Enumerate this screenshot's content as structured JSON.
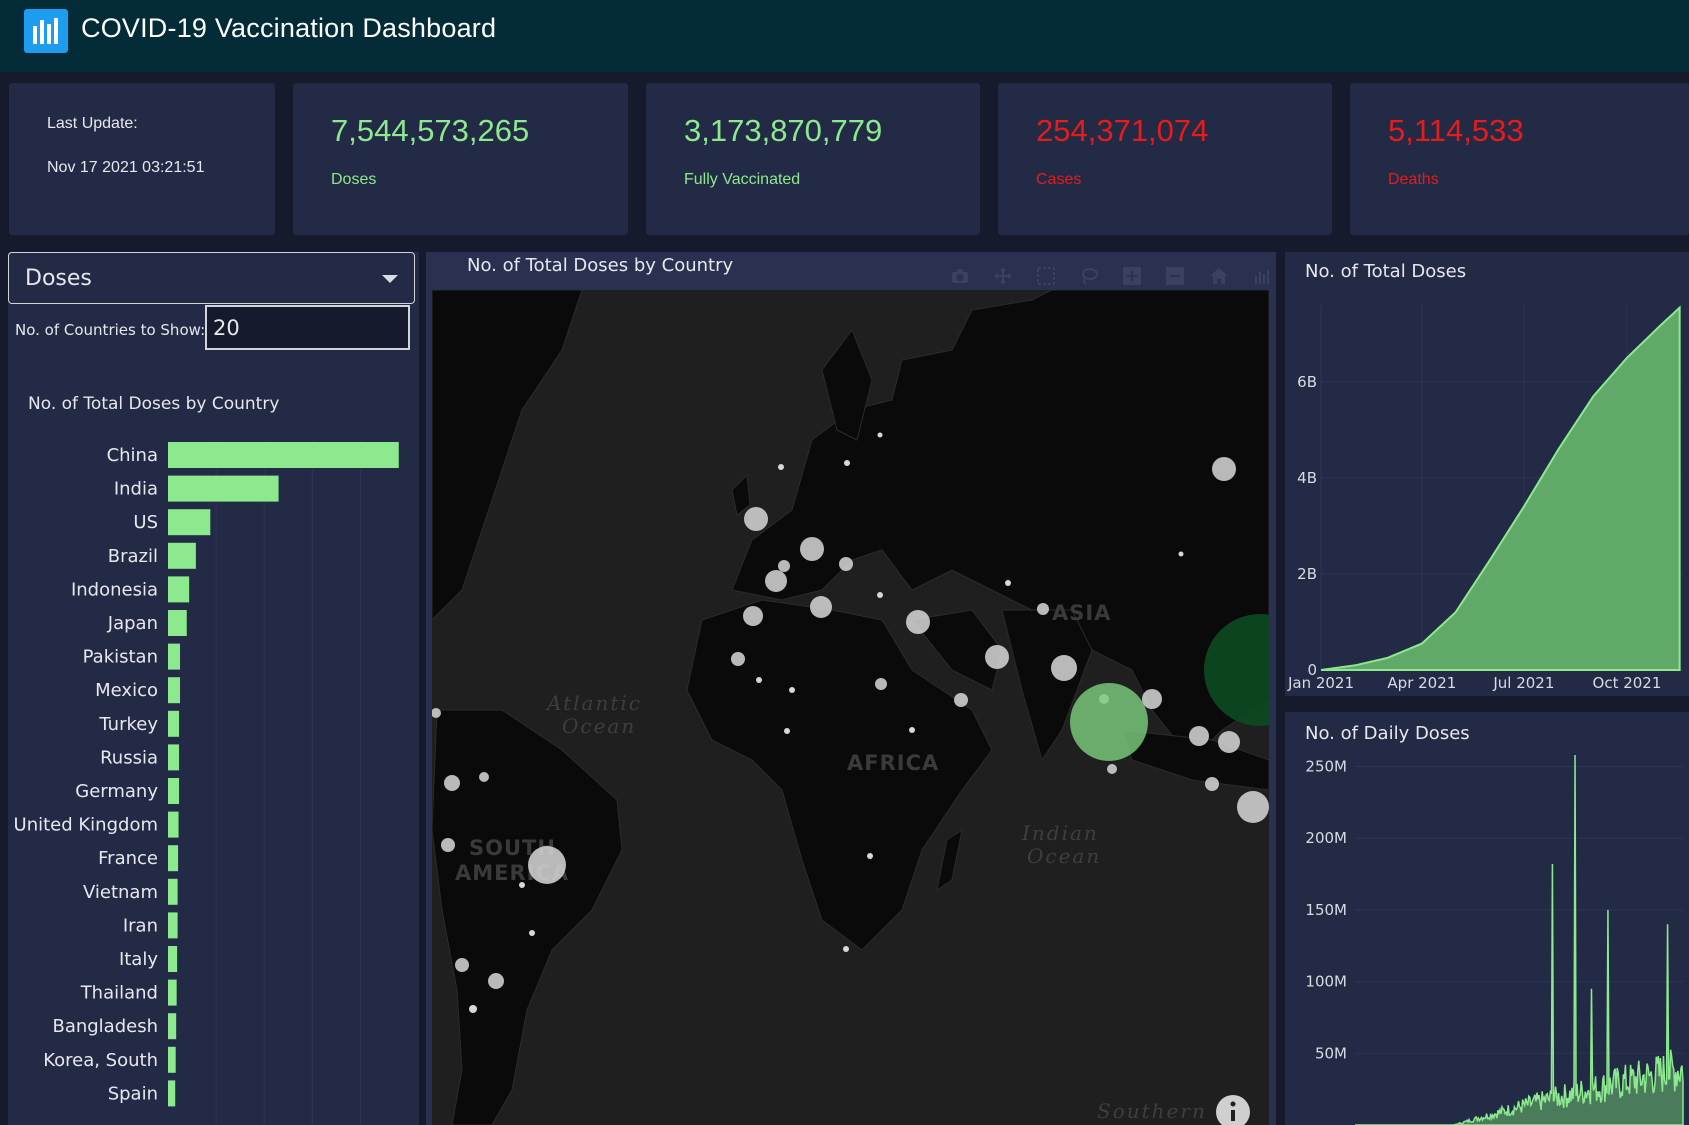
{
  "header": {
    "title": "COVID-19 Vaccination Dashboard",
    "logo_icon": "bar-chart-icon"
  },
  "cards": {
    "last_update_label": "Last Update:",
    "last_update_value": "Nov 17 2021 03:21:51",
    "doses": {
      "value": "7,544,573,265",
      "label": "Doses"
    },
    "fully_vaccinated": {
      "value": "3,173,870,779",
      "label": "Fully Vaccinated"
    },
    "cases": {
      "value": "254,371,074",
      "label": "Cases"
    },
    "deaths": {
      "value": "5,114,533",
      "label": "Deaths"
    }
  },
  "controls": {
    "metric_selected": "Doses",
    "countries_label": "No. of Countries to Show:",
    "countries_value": "20"
  },
  "colors": {
    "accent_green": "#8ce98e",
    "alert_red": "#e81b1b",
    "header_bg": "#032b38",
    "panel_bg": "#232a45"
  },
  "chart_data": [
    {
      "type": "bar",
      "orientation": "horizontal",
      "title": "No. of Total Doses by Country",
      "categories": [
        "China",
        "India",
        "US",
        "Brazil",
        "Indonesia",
        "Japan",
        "Pakistan",
        "Mexico",
        "Turkey",
        "Russia",
        "Germany",
        "United Kingdom",
        "France",
        "Vietnam",
        "Iran",
        "Italy",
        "Thailand",
        "Bangladesh",
        "Korea, South",
        "Spain"
      ],
      "values": [
        2400000000,
        1150000000,
        440000000,
        290000000,
        220000000,
        195000000,
        125000000,
        125000000,
        115000000,
        115000000,
        115000000,
        110000000,
        105000000,
        100000000,
        100000000,
        95000000,
        90000000,
        85000000,
        80000000,
        75000000
      ],
      "color": "#8ce98e",
      "xlim": [
        0,
        2600000000
      ]
    },
    {
      "type": "scatter",
      "subtype": "bubble-map",
      "title": "No. of Total Doses by Country",
      "map_labels": [
        "Atlantic Ocean",
        "Indian Ocean",
        "AFRICA",
        "ASIA",
        "SOUTH AMERICA",
        "Southern"
      ],
      "highlight_countries": [
        "China",
        "India"
      ]
    },
    {
      "type": "area",
      "title": "No. of Total Doses",
      "x_ticks": [
        "Jan 2021",
        "Apr 2021",
        "Jul 2021",
        "Oct 2021"
      ],
      "y_ticks": [
        "0",
        "2B",
        "4B",
        "6B"
      ],
      "ylim": [
        0,
        7600000000
      ],
      "x": [
        "2021-01-01",
        "2021-02-01",
        "2021-03-01",
        "2021-04-01",
        "2021-05-01",
        "2021-06-01",
        "2021-07-01",
        "2021-08-01",
        "2021-09-01",
        "2021-10-01",
        "2021-11-01",
        "2021-11-17"
      ],
      "values": [
        0,
        100000000,
        250000000,
        550000000,
        1200000000,
        2300000000,
        3400000000,
        4600000000,
        5700000000,
        6500000000,
        7200000000,
        7544573265
      ],
      "color": "#8ce98e"
    },
    {
      "type": "area",
      "title": "No. of Daily Doses",
      "y_ticks": [
        "50M",
        "100M",
        "150M",
        "200M",
        "250M"
      ],
      "ylim": [
        0,
        280000000
      ],
      "peaks_note": [
        "250M spike",
        "180M spike",
        "150M spike"
      ],
      "color": "#8ce98e"
    }
  ]
}
